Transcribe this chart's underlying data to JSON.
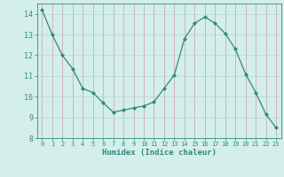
{
  "x": [
    0,
    1,
    2,
    3,
    4,
    5,
    6,
    7,
    8,
    9,
    10,
    11,
    12,
    13,
    14,
    15,
    16,
    17,
    18,
    19,
    20,
    21,
    22,
    23
  ],
  "y": [
    14.2,
    13.0,
    12.0,
    11.35,
    10.4,
    10.2,
    9.7,
    9.25,
    9.35,
    9.45,
    9.55,
    9.75,
    10.4,
    11.05,
    12.8,
    13.55,
    13.85,
    13.55,
    13.05,
    12.3,
    11.1,
    10.2,
    9.15,
    8.5
  ],
  "line_color": "#2e8b7a",
  "marker": "D",
  "marker_size": 2.0,
  "bg_color": "#d4eeeb",
  "grid_color": "#b8d8d4",
  "grid_major_color": "#c8a8a8",
  "xlabel": "Humidex (Indice chaleur)",
  "xlim": [
    -0.5,
    23.5
  ],
  "ylim": [
    8,
    14.5
  ],
  "yticks": [
    8,
    9,
    10,
    11,
    12,
    13,
    14
  ],
  "xticks": [
    0,
    1,
    2,
    3,
    4,
    5,
    6,
    7,
    8,
    9,
    10,
    11,
    12,
    13,
    14,
    15,
    16,
    17,
    18,
    19,
    20,
    21,
    22,
    23
  ]
}
